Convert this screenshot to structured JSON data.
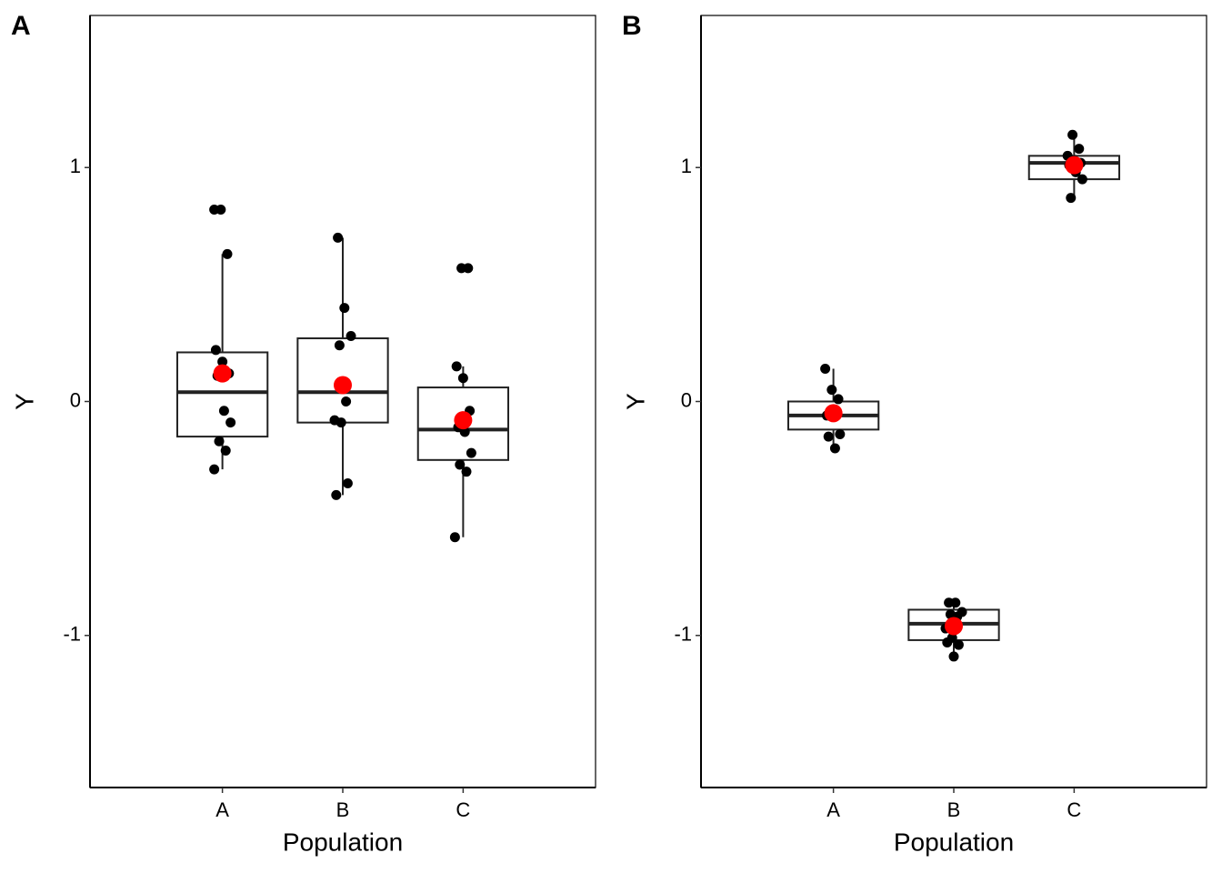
{
  "chart_data": [
    {
      "type": "box",
      "tag": "A",
      "xlabel": "Population",
      "ylabel": "Y",
      "categories": [
        "A",
        "B",
        "C"
      ],
      "ylim": [
        -1.65,
        1.65
      ],
      "yticks": [
        -1,
        0,
        1
      ],
      "point_color": "#000000",
      "mean_color": "#ff0000",
      "boxes": [
        {
          "whisker_low": -0.29,
          "q1": -0.15,
          "median": 0.04,
          "q3": 0.21,
          "whisker_high": 0.63
        },
        {
          "whisker_low": -0.4,
          "q1": -0.09,
          "median": 0.04,
          "q3": 0.27,
          "whisker_high": 0.7
        },
        {
          "whisker_low": -0.58,
          "q1": -0.25,
          "median": -0.12,
          "q3": 0.06,
          "whisker_high": 0.15
        }
      ],
      "points": [
        [
          0.82,
          0.82,
          0.63,
          0.22,
          0.17,
          0.12,
          0.11,
          -0.04,
          -0.09,
          -0.17,
          -0.21,
          -0.29
        ],
        [
          0.7,
          0.4,
          0.28,
          0.24,
          0.0,
          -0.08,
          -0.09,
          -0.35,
          -0.4
        ],
        [
          0.57,
          0.57,
          0.15,
          0.1,
          -0.04,
          -0.11,
          -0.13,
          -0.22,
          -0.27,
          -0.3,
          -0.58
        ]
      ],
      "means": [
        0.12,
        0.07,
        -0.08
      ]
    },
    {
      "type": "box",
      "tag": "B",
      "xlabel": "Population",
      "ylabel": "Y",
      "categories": [
        "A",
        "B",
        "C"
      ],
      "ylim": [
        -1.65,
        1.65
      ],
      "yticks": [
        -1,
        0,
        1
      ],
      "point_color": "#000000",
      "mean_color": "#ff0000",
      "boxes": [
        {
          "whisker_low": -0.19,
          "q1": -0.12,
          "median": -0.06,
          "q3": 0.0,
          "whisker_high": 0.14
        },
        {
          "whisker_low": -1.08,
          "q1": -1.02,
          "median": -0.95,
          "q3": -0.89,
          "whisker_high": -0.86
        },
        {
          "whisker_low": 0.87,
          "q1": 0.95,
          "median": 1.02,
          "q3": 1.05,
          "whisker_high": 1.14
        }
      ],
      "points": [
        [
          0.14,
          0.05,
          0.01,
          -0.06,
          -0.05,
          -0.14,
          -0.15,
          -0.2
        ],
        [
          -0.86,
          -0.86,
          -0.9,
          -0.91,
          -0.92,
          -0.97,
          -1.01,
          -1.04,
          -1.03,
          -1.09
        ],
        [
          1.14,
          1.08,
          1.05,
          1.03,
          1.02,
          1.01,
          0.98,
          0.95,
          0.87
        ]
      ],
      "means": [
        -0.05,
        -0.96,
        1.01
      ]
    }
  ]
}
